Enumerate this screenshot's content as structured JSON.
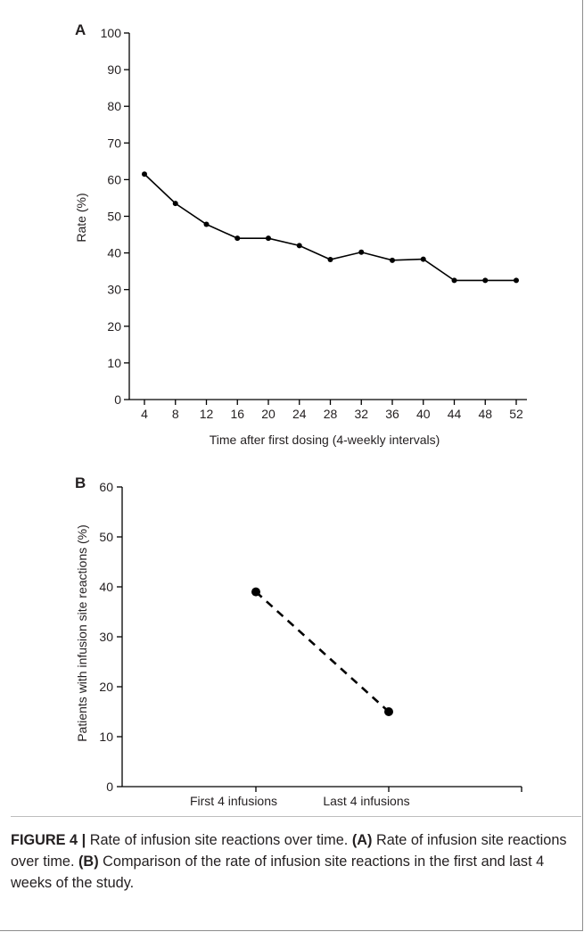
{
  "chart_data": [
    {
      "panel": "A",
      "type": "line",
      "xlabel": "Time after first dosing (4-weekly intervals)",
      "ylabel": "Rate (%)",
      "ylim": [
        0,
        100
      ],
      "yticks": [
        0,
        10,
        20,
        30,
        40,
        50,
        60,
        70,
        80,
        90,
        100
      ],
      "x": [
        4,
        8,
        12,
        16,
        20,
        24,
        28,
        32,
        36,
        40,
        44,
        48,
        52
      ],
      "y": [
        61.5,
        53.5,
        47.8,
        44.0,
        44.0,
        42.0,
        38.2,
        40.2,
        38.0,
        38.3,
        32.5,
        32.5,
        32.5
      ],
      "line_style": "solid",
      "grid": false
    },
    {
      "panel": "B",
      "type": "line",
      "xlabel": "",
      "ylabel": "Patients with infusion site reactions (%)",
      "ylim": [
        0,
        60
      ],
      "yticks": [
        0,
        10,
        20,
        30,
        40,
        50,
        60
      ],
      "categories": [
        "First 4 infusions",
        "Last 4 infusions"
      ],
      "values": [
        39,
        15
      ],
      "line_style": "dashed",
      "grid": false
    }
  ],
  "caption": {
    "label": "FIGURE 4 |",
    "intro": " Rate of infusion site reactions over time. ",
    "a_tag": "(A)",
    "a_text": " Rate of infusion site reactions over time. ",
    "b_tag": "(B)",
    "b_text": " Comparison of the rate of infusion site reactions in the first and last 4 weeks of the study."
  },
  "colors": {
    "line": "#000000",
    "text": "#231f20",
    "border": "#8c8c8c"
  }
}
